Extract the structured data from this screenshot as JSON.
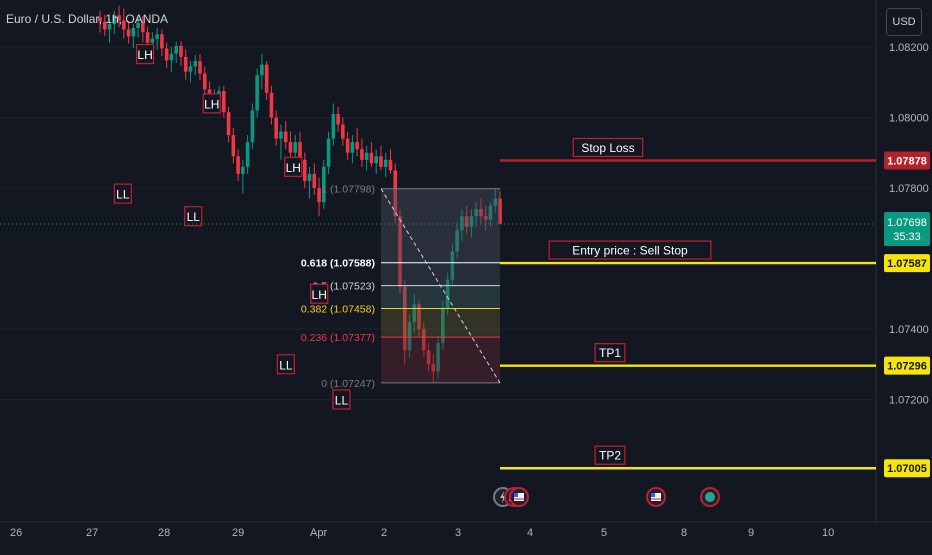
{
  "header": {
    "title": "Euro / U.S. Dollar, 1h, OANDA",
    "currency_button": "USD"
  },
  "chart_data": {
    "type": "candlestick",
    "instrument": "Euro / U.S. Dollar, 1h, OANDA",
    "y_ticks": [
      "1.08200",
      "1.08000",
      "1.07800",
      "1.07400",
      "1.07200"
    ],
    "ylim": [
      1.069,
      1.083
    ],
    "x_ticks": [
      "26",
      "27",
      "28",
      "29",
      "Apr",
      "2",
      "3",
      "4",
      "5",
      "8",
      "9",
      "10"
    ],
    "swing_labels": [
      {
        "label": "LL",
        "day": 27.55,
        "price": 1.07784
      },
      {
        "label": "LH",
        "day": 27.85,
        "price": 1.0818
      },
      {
        "label": "LL",
        "day": 28.5,
        "price": 1.0772
      },
      {
        "label": "LH",
        "day": 28.75,
        "price": 1.0804
      },
      {
        "label": "LH",
        "day": 29.85,
        "price": 1.0786
      },
      {
        "label": "LL",
        "day": 29.75,
        "price": 1.073
      },
      {
        "label": "LH",
        "day": 30.2,
        "price": 1.075
      },
      {
        "label": "LL",
        "day": 30.5,
        "price": 1.072
      }
    ],
    "fibonacci": {
      "from_price": 1.07798,
      "to_price": 1.07247,
      "levels": [
        {
          "ratio": "1",
          "price": 1.07798,
          "label": "1 (1.07798)",
          "color": "#787b86"
        },
        {
          "ratio": "0.618",
          "price": 1.07588,
          "label": "0.618 (1.07588)",
          "color": "#ffffff"
        },
        {
          "ratio": "0.5",
          "price": 1.07523,
          "label": "0.5 (1.07523)",
          "color": "#d1d4dc"
        },
        {
          "ratio": "0.382",
          "price": 1.07458,
          "label": "0.382 (1.07458)",
          "color": "#f5d020"
        },
        {
          "ratio": "0.236",
          "price": 1.07377,
          "label": "0.236 (1.07377)",
          "color": "#f23645"
        },
        {
          "ratio": "0",
          "price": 1.07247,
          "label": "0 (1.07247)",
          "color": "#787b86"
        }
      ]
    },
    "trade_levels": [
      {
        "name": "Stop Loss",
        "price": 1.07878,
        "price_label": "1.07878",
        "color": "#b2222a"
      },
      {
        "name": "Entry price : Sell Stop",
        "price": 1.07587,
        "price_label": "1.07587",
        "color": "#f5e50b"
      },
      {
        "name": "TP1",
        "price": 1.07296,
        "price_label": "1.07296",
        "color": "#f5e50b"
      },
      {
        "name": "TP2",
        "price": 1.07005,
        "price_label": "1.07005",
        "color": "#f5e50b"
      }
    ],
    "current_price": {
      "price": 1.07698,
      "label": "1.07698",
      "countdown": "35:33",
      "color": "#089981"
    },
    "candles": [
      [
        1.08284,
        1.08303,
        1.08241,
        1.08272
      ],
      [
        1.08272,
        1.08291,
        1.08232,
        1.0825
      ],
      [
        1.0825,
        1.0828,
        1.08212,
        1.08265
      ],
      [
        1.08265,
        1.08303,
        1.08237,
        1.0829
      ],
      [
        1.0829,
        1.08317,
        1.08256,
        1.08275
      ],
      [
        1.08275,
        1.08309,
        1.08224,
        1.0825
      ],
      [
        1.0825,
        1.08274,
        1.0821,
        1.0823
      ],
      [
        1.0823,
        1.08266,
        1.08197,
        1.08254
      ],
      [
        1.08254,
        1.08286,
        1.08227,
        1.08268
      ],
      [
        1.08268,
        1.08288,
        1.08214,
        1.08242
      ],
      [
        1.08242,
        1.08258,
        1.08186,
        1.08212
      ],
      [
        1.08212,
        1.08242,
        1.0818,
        1.08223
      ],
      [
        1.08223,
        1.08254,
        1.08192,
        1.08236
      ],
      [
        1.08236,
        1.0825,
        1.08175,
        1.08196
      ],
      [
        1.08196,
        1.08213,
        1.0814,
        1.08162
      ],
      [
        1.08162,
        1.082,
        1.0813,
        1.08181
      ],
      [
        1.08181,
        1.08215,
        1.08155,
        1.08203
      ],
      [
        1.08203,
        1.08217,
        1.08147,
        1.08172
      ],
      [
        1.08172,
        1.08193,
        1.08108,
        1.0813
      ],
      [
        1.0813,
        1.0816,
        1.081,
        1.08145
      ],
      [
        1.08145,
        1.08177,
        1.0812,
        1.0816
      ],
      [
        1.0816,
        1.0818,
        1.08105,
        1.08125
      ],
      [
        1.08125,
        1.08145,
        1.0806,
        1.0808
      ],
      [
        1.0808,
        1.08102,
        1.0802,
        1.0804
      ],
      [
        1.0804,
        1.0808,
        1.0801,
        1.0806
      ],
      [
        1.0806,
        1.0809,
        1.0803,
        1.08075
      ],
      [
        1.08075,
        1.0809,
        1.08,
        1.08015
      ],
      [
        1.08015,
        1.0803,
        1.0793,
        1.0795
      ],
      [
        1.0795,
        1.0797,
        1.0787,
        1.0789
      ],
      [
        1.0789,
        1.0791,
        1.0782,
        1.0784
      ],
      [
        1.0784,
        1.0788,
        1.07784,
        1.0786
      ],
      [
        1.0786,
        1.0795,
        1.0784,
        1.0793
      ],
      [
        1.0793,
        1.0804,
        1.0791,
        1.0802
      ],
      [
        1.0802,
        1.0814,
        1.08,
        1.0812
      ],
      [
        1.0812,
        1.0818,
        1.0808,
        1.0815
      ],
      [
        1.0815,
        1.0816,
        1.0805,
        1.0807
      ],
      [
        1.0807,
        1.0809,
        1.0798,
        1.08
      ],
      [
        1.08,
        1.0802,
        1.0792,
        1.0794
      ],
      [
        1.0794,
        1.0798,
        1.0788,
        1.0796
      ],
      [
        1.0796,
        1.0799,
        1.0791,
        1.0793
      ],
      [
        1.0793,
        1.0796,
        1.0788,
        1.079
      ],
      [
        1.079,
        1.0795,
        1.0787,
        1.0793
      ],
      [
        1.0793,
        1.0796,
        1.0786,
        1.0788
      ],
      [
        1.0788,
        1.079,
        1.078,
        1.0782
      ],
      [
        1.0782,
        1.0786,
        1.0777,
        1.0784
      ],
      [
        1.0784,
        1.0787,
        1.0778,
        1.078
      ],
      [
        1.078,
        1.0783,
        1.0772,
        1.0776
      ],
      [
        1.0776,
        1.0788,
        1.0774,
        1.0786
      ],
      [
        1.0786,
        1.0796,
        1.0784,
        1.0794
      ],
      [
        1.0794,
        1.0804,
        1.0792,
        1.0801
      ],
      [
        1.0801,
        1.0803,
        1.0796,
        1.0798
      ],
      [
        1.0798,
        1.08,
        1.0792,
        1.0794
      ],
      [
        1.0794,
        1.0796,
        1.0788,
        1.079
      ],
      [
        1.079,
        1.0795,
        1.0787,
        1.0793
      ],
      [
        1.0793,
        1.0797,
        1.0789,
        1.0791
      ],
      [
        1.0791,
        1.0794,
        1.0786,
        1.0788
      ],
      [
        1.0788,
        1.0792,
        1.0785,
        1.079
      ],
      [
        1.079,
        1.0793,
        1.0786,
        1.0787
      ],
      [
        1.0787,
        1.0791,
        1.0784,
        1.0789
      ],
      [
        1.0789,
        1.0792,
        1.0785,
        1.0786
      ],
      [
        1.0786,
        1.079,
        1.0783,
        1.0788
      ],
      [
        1.0788,
        1.0791,
        1.0784,
        1.0785
      ],
      [
        1.0785,
        1.0787,
        1.077,
        1.0772
      ],
      [
        1.0772,
        1.0774,
        1.075,
        1.0752
      ],
      [
        1.0752,
        1.0754,
        1.073,
        1.0734
      ],
      [
        1.0734,
        1.0744,
        1.0732,
        1.0742
      ],
      [
        1.0742,
        1.075,
        1.0739,
        1.0747
      ],
      [
        1.0747,
        1.0748,
        1.0738,
        1.074
      ],
      [
        1.074,
        1.0742,
        1.0732,
        1.0734
      ],
      [
        1.0734,
        1.0736,
        1.0728,
        1.073
      ],
      [
        1.073,
        1.0733,
        1.07247,
        1.0728
      ],
      [
        1.0728,
        1.0738,
        1.0726,
        1.0736
      ],
      [
        1.0736,
        1.0748,
        1.0734,
        1.0746
      ],
      [
        1.0746,
        1.0756,
        1.0744,
        1.0754
      ],
      [
        1.0754,
        1.0764,
        1.0752,
        1.0762
      ],
      [
        1.0762,
        1.077,
        1.076,
        1.0768
      ],
      [
        1.0768,
        1.0774,
        1.0765,
        1.0772
      ],
      [
        1.0772,
        1.0775,
        1.0767,
        1.0769
      ],
      [
        1.0769,
        1.0774,
        1.0766,
        1.0772
      ],
      [
        1.0772,
        1.0776,
        1.0769,
        1.0774
      ],
      [
        1.0774,
        1.0777,
        1.077,
        1.0772
      ],
      [
        1.0772,
        1.0775,
        1.0768,
        1.0771
      ],
      [
        1.0771,
        1.0776,
        1.0769,
        1.0775
      ],
      [
        1.0775,
        1.07798,
        1.0773,
        1.0777
      ],
      [
        1.0777,
        1.0779,
        1.077,
        1.07698
      ]
    ]
  }
}
